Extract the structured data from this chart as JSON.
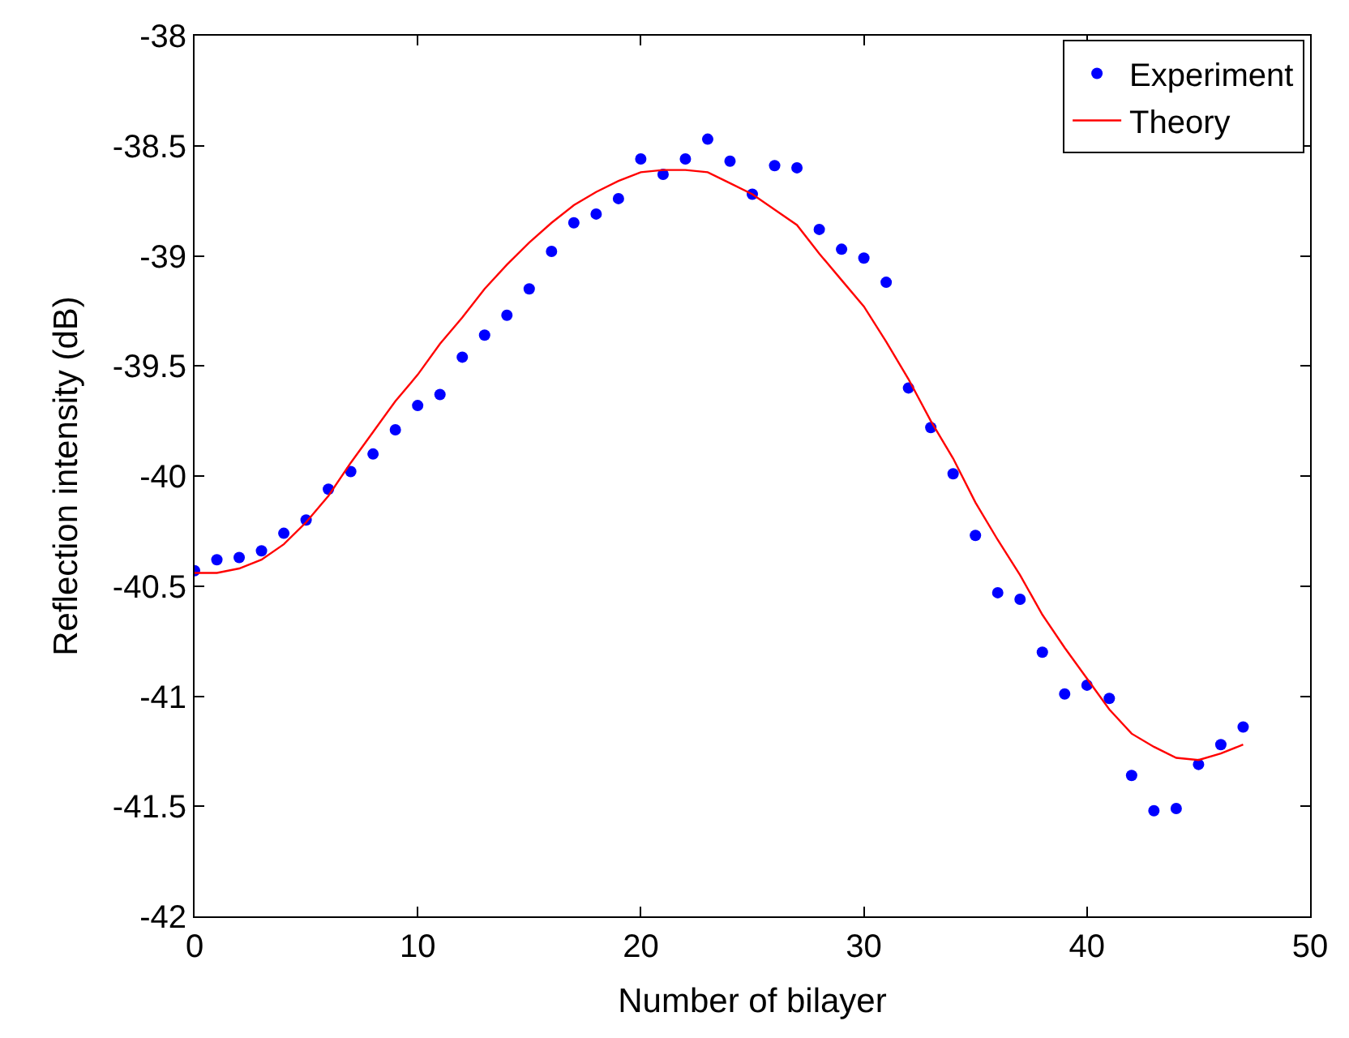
{
  "chart_data": {
    "type": "scatter",
    "xlabel": "Number of bilayer",
    "ylabel": "Reflection intensity (dB)",
    "x": [
      0,
      1,
      2,
      3,
      4,
      5,
      6,
      7,
      8,
      9,
      10,
      11,
      12,
      13,
      14,
      15,
      16,
      17,
      18,
      19,
      20,
      21,
      22,
      23,
      24,
      25,
      26,
      27,
      28,
      29,
      30,
      31,
      32,
      33,
      34,
      35,
      36,
      37,
      38,
      39,
      40,
      41,
      42,
      43,
      44,
      45,
      46,
      47
    ],
    "series": [
      {
        "name": "Experiment",
        "marker": "circle",
        "color": "#0000ff",
        "values": [
          -40.43,
          -40.38,
          -40.37,
          -40.34,
          -40.26,
          -40.2,
          -40.06,
          -39.98,
          -39.9,
          -39.79,
          -39.68,
          -39.63,
          -39.46,
          -39.36,
          -39.27,
          -39.15,
          -38.98,
          -38.85,
          -38.81,
          -38.74,
          -38.56,
          -38.63,
          -38.56,
          -38.47,
          -38.57,
          -38.72,
          -38.59,
          -38.6,
          -38.88,
          -38.97,
          -39.01,
          -39.12,
          -39.6,
          -39.78,
          -39.99,
          -40.27,
          -40.53,
          -40.56,
          -40.8,
          -40.99,
          -40.95,
          -41.01,
          -41.36,
          -41.52,
          -41.51,
          -41.31,
          -41.22,
          -41.14
        ]
      },
      {
        "name": "Theory",
        "type": "line",
        "marker": "none",
        "line_style": "solid",
        "color": "#ff0000",
        "values": [
          -40.44,
          -40.44,
          -40.42,
          -40.38,
          -40.31,
          -40.21,
          -40.09,
          -39.94,
          -39.8,
          -39.66,
          -39.54,
          -39.4,
          -39.28,
          -39.15,
          -39.04,
          -38.94,
          -38.85,
          -38.77,
          -38.71,
          -38.66,
          -38.62,
          -38.61,
          -38.61,
          -38.62,
          -38.67,
          -38.72,
          -38.79,
          -38.86,
          -38.99,
          -39.11,
          -39.23,
          -39.39,
          -39.56,
          -39.75,
          -39.92,
          -40.12,
          -40.29,
          -40.45,
          -40.63,
          -40.78,
          -40.92,
          -41.06,
          -41.17,
          -41.23,
          -41.28,
          -41.29,
          -41.26,
          -41.22
        ]
      }
    ],
    "xlim": [
      0,
      50
    ],
    "xticks": [
      0,
      10,
      20,
      30,
      40,
      50
    ],
    "ylim": [
      -42,
      -38
    ],
    "yticks": [
      -42,
      -41.5,
      -41,
      -40.5,
      -40,
      -39.5,
      -39,
      -38.5,
      -38
    ],
    "legend": "top right"
  }
}
